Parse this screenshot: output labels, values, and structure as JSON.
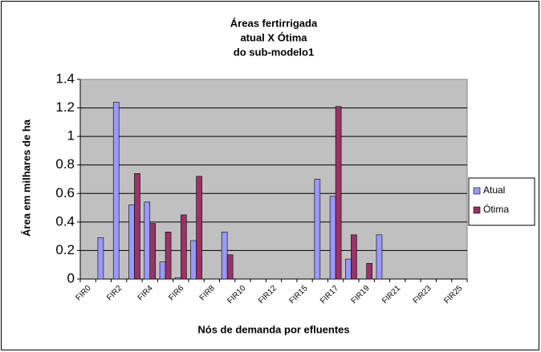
{
  "chart_data": {
    "type": "bar",
    "title": [
      "Áreas fertirrigada",
      "atual X Ótima",
      "do sub-modelo1"
    ],
    "x_label": "Nós de demanda por efluentes",
    "y_label": "Área em milhares de ha",
    "categories": [
      "FIR0",
      null,
      "FIR2",
      null,
      "FIR4",
      null,
      "FIR6",
      null,
      "FIR8",
      null,
      "FIR10",
      null,
      "FIR12",
      null,
      "FIR15",
      null,
      "FIR17",
      null,
      "FIR19",
      null,
      "FIR21",
      null,
      "FIR23",
      null,
      "FIR25"
    ],
    "series": [
      {
        "name": "Atual",
        "color": "#9999ff",
        "values": [
          0,
          0.29,
          1.24,
          0.52,
          0.54,
          0.12,
          0.01,
          0.27,
          0,
          0.33,
          0,
          0,
          0,
          0,
          0,
          0.7,
          0.58,
          0.14,
          0,
          0.31,
          0,
          0,
          0,
          0,
          0
        ]
      },
      {
        "name": "Ótima",
        "color": "#993366",
        "values": [
          0,
          0,
          0,
          0.74,
          0.39,
          0.33,
          0.45,
          0.72,
          0,
          0.17,
          0,
          0,
          0,
          0,
          0,
          0,
          1.21,
          0.31,
          0.11,
          0,
          0,
          0,
          0,
          0,
          0
        ]
      }
    ],
    "ylim": [
      0,
      1.4
    ],
    "yticks": [
      0,
      0.2,
      0.4,
      0.6,
      0.8,
      1,
      1.2,
      1.4
    ],
    "grid": true,
    "legend": "right"
  }
}
